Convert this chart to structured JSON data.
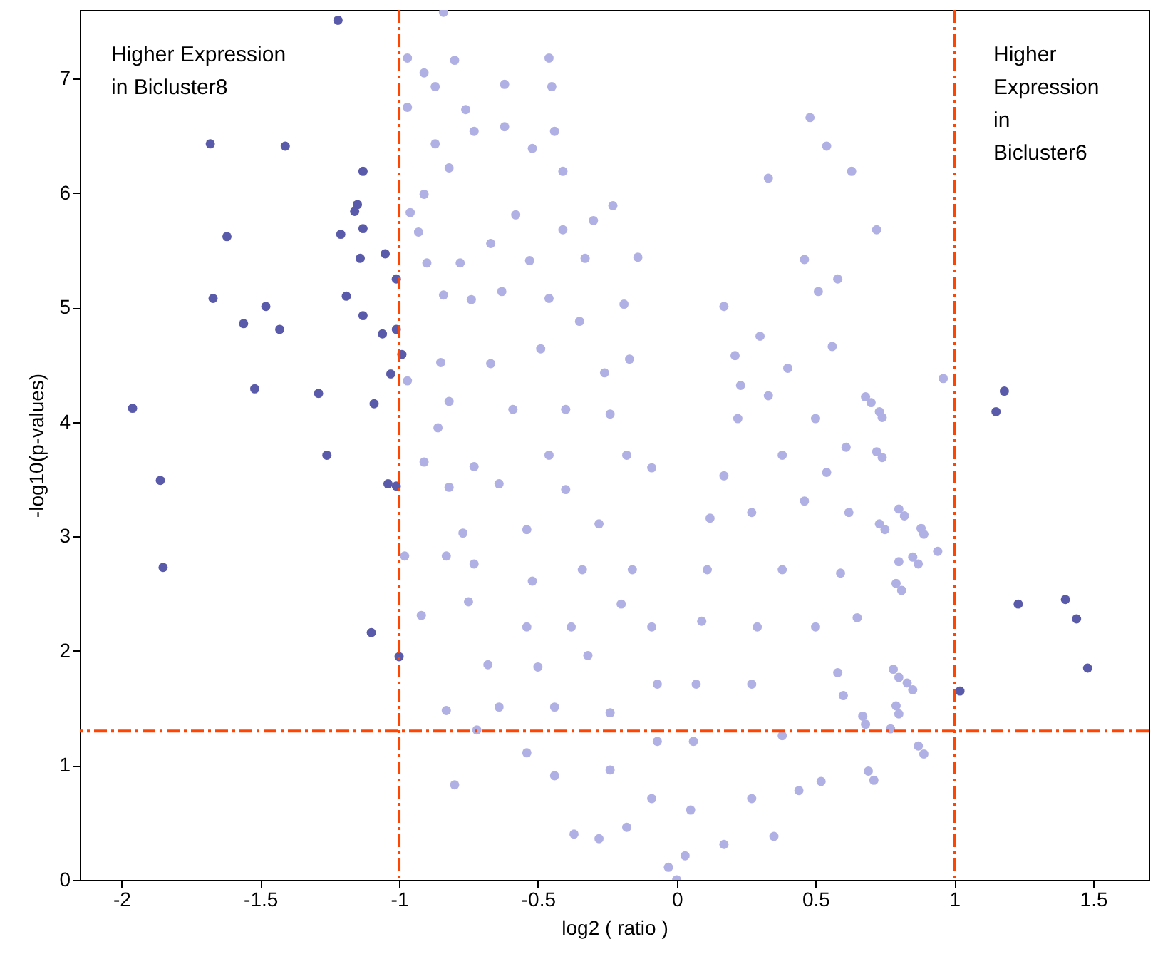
{
  "chart_data": {
    "type": "scatter",
    "xlabel": "log2 ( ratio )",
    "ylabel": "-log10(p-values)",
    "xlim": [
      -2.15,
      1.7
    ],
    "ylim": [
      0,
      7.6
    ],
    "xticks": [
      -2,
      -1.5,
      -1,
      -0.5,
      0,
      0.5,
      1,
      1.5
    ],
    "yticks": [
      0,
      1,
      2,
      3,
      4,
      5,
      6,
      7
    ],
    "grid": false,
    "marker": "circle",
    "annotations": [
      "Higher Expression in Bicluster8",
      "Higher Expression in Bicluster6"
    ],
    "ref_lines": [
      {
        "axis": "x",
        "value": -1,
        "color": "#ff4500",
        "line_style": "dashdot"
      },
      {
        "axis": "x",
        "value": 1,
        "color": "#ff4500",
        "line_style": "dashdot"
      },
      {
        "axis": "y",
        "value": 1.3,
        "color": "#ff4500",
        "line_style": "dashdot"
      }
    ],
    "series": [
      {
        "color": "#b0b0e4",
        "x": [
          -0.84,
          -0.97,
          -0.8,
          -0.91,
          -0.87,
          -0.46,
          -0.45,
          -0.62,
          -0.97,
          -0.76,
          -0.73,
          -0.62,
          -0.44,
          -0.52,
          -0.87,
          -0.82,
          -0.41,
          -0.91,
          -0.58,
          -0.23,
          -0.96,
          -0.93,
          -0.3,
          -0.67,
          -0.41,
          -0.14,
          -0.9,
          -0.78,
          -0.53,
          -0.33,
          -0.84,
          -0.63,
          -0.46,
          -0.19,
          -0.74,
          -0.35,
          -0.85,
          -0.67,
          -0.49,
          -0.26,
          -0.17,
          -0.97,
          -0.82,
          -0.59,
          -0.4,
          -0.24,
          -0.86,
          -0.91,
          -0.73,
          -0.46,
          -0.18,
          -0.09,
          -0.82,
          -0.64,
          -0.4,
          -0.77,
          -0.54,
          -0.28,
          -0.98,
          -0.83,
          -0.73,
          -0.52,
          -0.34,
          -0.16,
          -0.92,
          -0.75,
          -0.54,
          -0.38,
          -0.2,
          -0.09,
          -0.68,
          -0.5,
          -0.32,
          -0.07,
          -0.83,
          -0.64,
          -0.44,
          -0.24,
          -0.72,
          -0.54,
          -0.8,
          -0.44,
          -0.24,
          -0.07,
          -0.37,
          -0.28,
          -0.18,
          -0.09,
          -0.03,
          0,
          0.48,
          0.54,
          0.63,
          0.33,
          0.72,
          0.46,
          0.58,
          0.17,
          0.51,
          0.3,
          0.21,
          0.4,
          0.56,
          0.7,
          0.74,
          0.23,
          0.33,
          0.61,
          0.74,
          0.22,
          0.5,
          0.17,
          0.38,
          0.54,
          0.12,
          0.27,
          0.46,
          0.62,
          0.82,
          0.75,
          0.89,
          0.11,
          0.38,
          0.59,
          0.81,
          0.87,
          0.65,
          0.09,
          0.29,
          0.5,
          0.07,
          0.27,
          0.58,
          0.8,
          0.85,
          0.8,
          0.68,
          0.77,
          0.06,
          0.38,
          0.6,
          0.89,
          0.71,
          0.52,
          0.05,
          0.27,
          0.44,
          0.35,
          0.17,
          0.03,
          0.96,
          0.68,
          0.73,
          0.72,
          0.8,
          0.73,
          0.88,
          0.94,
          0.85,
          0.8,
          0.79,
          0.78,
          0.83,
          0.79,
          0.67,
          0.87,
          0.69
        ],
        "values": [
          7.58,
          7.18,
          7.16,
          7.05,
          6.93,
          7.18,
          6.93,
          6.95,
          6.75,
          6.73,
          6.54,
          6.58,
          6.54,
          6.39,
          6.43,
          6.22,
          6.19,
          5.99,
          5.81,
          5.89,
          5.83,
          5.66,
          5.76,
          5.56,
          5.68,
          5.44,
          5.39,
          5.39,
          5.41,
          5.43,
          5.11,
          5.14,
          5.08,
          5.03,
          5.07,
          4.88,
          4.52,
          4.51,
          4.64,
          4.43,
          4.55,
          4.36,
          4.18,
          4.11,
          4.11,
          4.07,
          3.95,
          3.65,
          3.61,
          3.71,
          3.71,
          3.6,
          3.43,
          3.46,
          3.41,
          3.03,
          3.06,
          3.11,
          2.83,
          2.83,
          2.76,
          2.61,
          2.71,
          2.71,
          2.31,
          2.43,
          2.21,
          2.21,
          2.41,
          2.21,
          1.88,
          1.86,
          1.96,
          1.71,
          1.48,
          1.51,
          1.51,
          1.46,
          1.31,
          1.11,
          0.83,
          0.91,
          0.96,
          1.21,
          0.4,
          0.36,
          0.46,
          0.71,
          0.11,
          0,
          6.66,
          6.41,
          6.19,
          6.13,
          5.68,
          5.42,
          5.25,
          5.01,
          5.14,
          4.75,
          4.58,
          4.47,
          4.66,
          4.17,
          4.04,
          4.32,
          4.23,
          3.78,
          3.69,
          4.03,
          4.03,
          3.53,
          3.71,
          3.56,
          3.16,
          3.21,
          3.31,
          3.21,
          3.18,
          3.06,
          3.02,
          2.71,
          2.71,
          2.68,
          2.53,
          2.76,
          2.29,
          2.26,
          2.21,
          2.21,
          1.71,
          1.71,
          1.81,
          1.77,
          1.66,
          1.45,
          1.36,
          1.32,
          1.21,
          1.26,
          1.61,
          1.1,
          0.87,
          0.86,
          0.61,
          0.71,
          0.78,
          0.38,
          0.31,
          0.21,
          4.38,
          4.22,
          4.09,
          3.74,
          3.24,
          3.11,
          3.07,
          2.87,
          2.82,
          2.78,
          2.59,
          1.84,
          1.72,
          1.52,
          1.43,
          1.17,
          0.95
        ]
      },
      {
        "color": "#5a5aaa",
        "x": [
          -1.22,
          -1.68,
          -1.41,
          -1.13,
          -1.15,
          -1.16,
          -1.62,
          -1.13,
          -1.21,
          -1.14,
          -1.05,
          -1.01,
          -1.67,
          -1.19,
          -1.13,
          -1.48,
          -1.56,
          -1.43,
          -1.06,
          -1.01,
          -0.99,
          -1.03,
          -1.52,
          -1.96,
          -1.29,
          -1.09,
          -1.26,
          -1.86,
          -1.04,
          -1.01,
          -1.85,
          -1.1,
          -1,
          1.18,
          1.15,
          1.23,
          1.4,
          1.44,
          1.48,
          1.02
        ],
        "values": [
          7.51,
          6.43,
          6.41,
          6.19,
          5.9,
          5.84,
          5.62,
          5.69,
          5.64,
          5.43,
          5.47,
          5.25,
          5.08,
          5.1,
          4.93,
          5.01,
          4.86,
          4.81,
          4.77,
          4.81,
          4.59,
          4.42,
          4.29,
          4.12,
          4.25,
          4.16,
          3.71,
          3.49,
          3.46,
          3.44,
          2.73,
          2.16,
          1.95,
          4.27,
          4.09,
          2.41,
          2.45,
          2.28,
          1.85,
          1.65
        ]
      }
    ]
  }
}
